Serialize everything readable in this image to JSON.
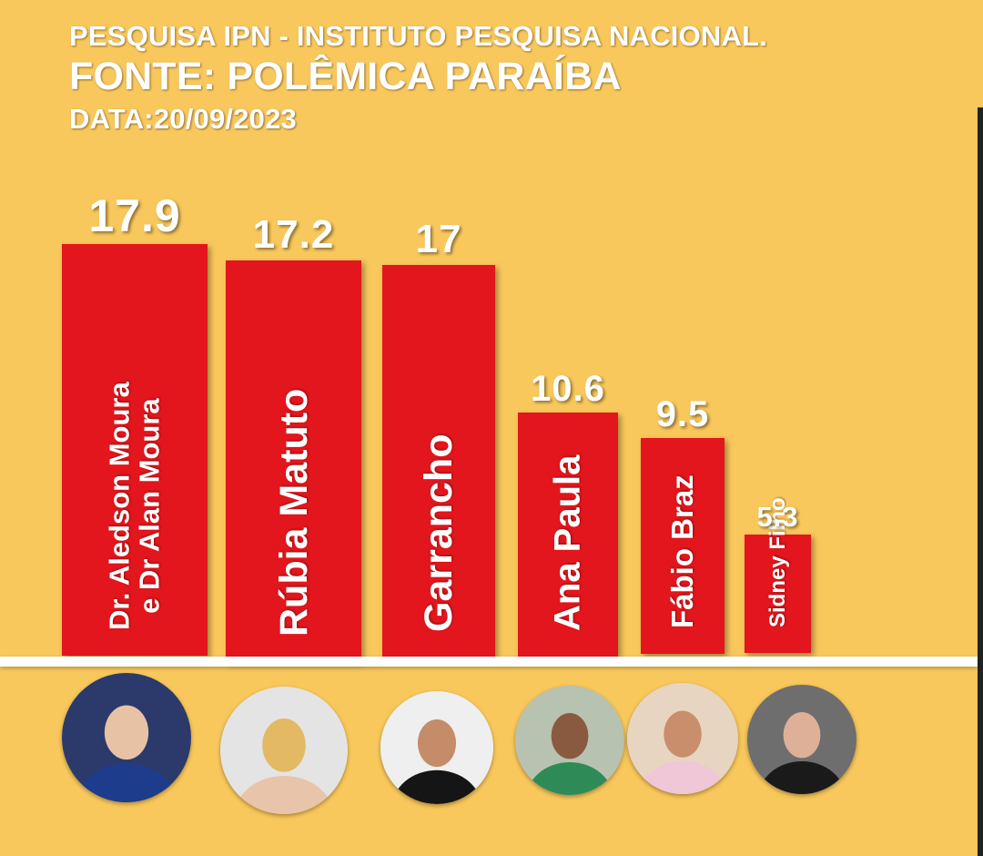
{
  "header": {
    "title": "PESQUISA IPN - INSTITUTO PESQUISA NACIONAL.",
    "source": "FONTE: POLÊMICA PARAÍBA",
    "date": "DATA:20/09/2023"
  },
  "chart_data": {
    "type": "bar",
    "categories": [
      "Dr. Aledson Moura e Dr Alan Moura",
      "Rúbia Matuto",
      "Garrancho",
      "Ana Paula",
      "Fábio Braz",
      "Sidney Filho"
    ],
    "category_lines": [
      [
        "Dr. Aledson Moura",
        "e Dr Alan Moura"
      ],
      [
        "Rúbia Matuto"
      ],
      [
        "Garrancho"
      ],
      [
        "Ana Paula"
      ],
      [
        "Fábio Braz"
      ],
      [
        "Sidney Filho"
      ]
    ],
    "values": [
      17.9,
      17.2,
      17,
      10.6,
      9.5,
      5.3
    ],
    "value_labels": [
      "17.9",
      "17.2",
      "17",
      "10.6",
      "9.5",
      "5.3"
    ],
    "bar_color": "#E2161C",
    "background": "#F9C85C",
    "label_color": "#FFFFFF",
    "title": "",
    "xlabel": "",
    "ylabel": "",
    "grid": false,
    "legend": "none"
  },
  "avatars": [
    {
      "icon": "candidate-photo-aledson-alan-moura",
      "colors": [
        "#2B3A6B",
        "#E7C2A4",
        "#1E3C8C"
      ]
    },
    {
      "icon": "candidate-photo-rubia-matuto",
      "colors": [
        "#E4E4E4",
        "#E3B964",
        "#E8C4AA"
      ]
    },
    {
      "icon": "candidate-photo-garrancho",
      "colors": [
        "#EFEFEF",
        "#C48C69",
        "#151515"
      ]
    },
    {
      "icon": "candidate-photo-ana-paula",
      "colors": [
        "#B8C2B0",
        "#8A5A40",
        "#2E8B57"
      ]
    },
    {
      "icon": "candidate-photo-fabio-braz",
      "colors": [
        "#E7D5C2",
        "#C98E6B",
        "#F0C7D6"
      ]
    },
    {
      "icon": "candidate-photo-sidney-filho",
      "colors": [
        "#6E6E6E",
        "#DDB097",
        "#1A1A1A"
      ]
    }
  ]
}
